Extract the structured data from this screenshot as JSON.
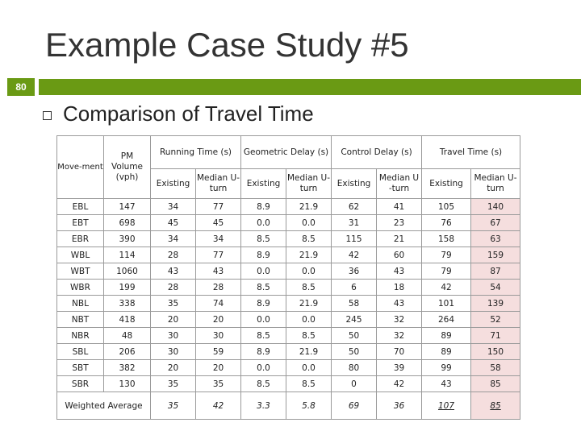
{
  "slide": {
    "title": "Example Case Study #5",
    "page_number": "80",
    "subtitle": "Comparison of Travel Time"
  },
  "table": {
    "headers": {
      "movement": "Move-ment",
      "volume": "PM Volume (vph)",
      "groups": [
        "Running Time (s)",
        "Geometric Delay (s)",
        "Control Delay (s)",
        "Travel Time (s)"
      ],
      "subcols": [
        [
          "Existing",
          "Median U-turn"
        ],
        [
          "Existing",
          "Median U-turn"
        ],
        [
          "Existing",
          "Median U -turn"
        ],
        [
          "Existing",
          "Median U-turn"
        ]
      ]
    },
    "rows": [
      [
        "EBL",
        "147",
        "34",
        "77",
        "8.9",
        "21.9",
        "62",
        "41",
        "105",
        "140"
      ],
      [
        "EBT",
        "698",
        "45",
        "45",
        "0.0",
        "0.0",
        "31",
        "23",
        "76",
        "67"
      ],
      [
        "EBR",
        "390",
        "34",
        "34",
        "8.5",
        "8.5",
        "115",
        "21",
        "158",
        "63"
      ],
      [
        "WBL",
        "114",
        "28",
        "77",
        "8.9",
        "21.9",
        "42",
        "60",
        "79",
        "159"
      ],
      [
        "WBT",
        "1060",
        "43",
        "43",
        "0.0",
        "0.0",
        "36",
        "43",
        "79",
        "87"
      ],
      [
        "WBR",
        "199",
        "28",
        "28",
        "8.5",
        "8.5",
        "6",
        "18",
        "42",
        "54"
      ],
      [
        "NBL",
        "338",
        "35",
        "74",
        "8.9",
        "21.9",
        "58",
        "43",
        "101",
        "139"
      ],
      [
        "NBT",
        "418",
        "20",
        "20",
        "0.0",
        "0.0",
        "245",
        "32",
        "264",
        "52"
      ],
      [
        "NBR",
        "48",
        "30",
        "30",
        "8.5",
        "8.5",
        "50",
        "32",
        "89",
        "71"
      ],
      [
        "SBL",
        "206",
        "30",
        "59",
        "8.9",
        "21.9",
        "50",
        "70",
        "89",
        "150"
      ],
      [
        "SBT",
        "382",
        "20",
        "20",
        "0.0",
        "0.0",
        "80",
        "39",
        "99",
        "58"
      ],
      [
        "SBR",
        "130",
        "35",
        "35",
        "8.5",
        "8.5",
        "0",
        "42",
        "43",
        "85"
      ]
    ],
    "weighted_average": {
      "label": "Weighted Average",
      "values": [
        "35",
        "42",
        "3.3",
        "5.8",
        "69",
        "36",
        "107",
        "85"
      ]
    }
  },
  "colors": {
    "accent_green": "#6a9a14",
    "highlight_pink": "#f5dede"
  }
}
